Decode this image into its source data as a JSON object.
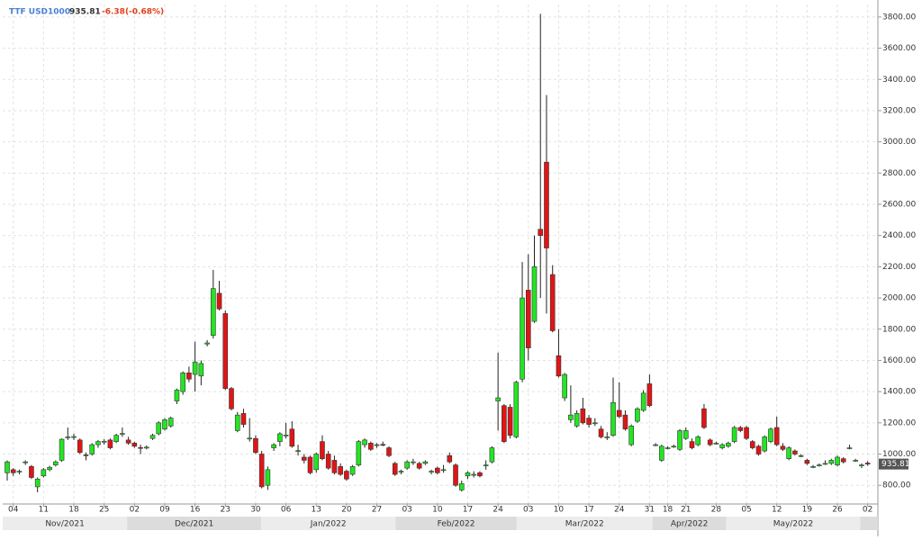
{
  "chart_data": {
    "type": "candlestick",
    "instrument": "TTF USD1000",
    "last_price": 935.81,
    "change": "-6.38(-0.68%)",
    "up_color": "#22e622",
    "down_color": "#e01515",
    "grid": true,
    "ylim": [
      680,
      3880
    ],
    "yticks": [
      {
        "value": 800,
        "label": "800.00"
      },
      {
        "value": 1000,
        "label": "1000.00"
      },
      {
        "value": 1200,
        "label": "1200.00"
      },
      {
        "value": 1400,
        "label": "1400.00"
      },
      {
        "value": 1600,
        "label": "1600.00"
      },
      {
        "value": 1800,
        "label": "1800.00"
      },
      {
        "value": 2000,
        "label": "2000.00"
      },
      {
        "value": 2200,
        "label": "2200.00"
      },
      {
        "value": 2400,
        "label": "2400.00"
      },
      {
        "value": 2600,
        "label": "2600.00"
      },
      {
        "value": 2800,
        "label": "2800.00"
      },
      {
        "value": 3000,
        "label": "3000.00"
      },
      {
        "value": 3200,
        "label": "3200.00"
      },
      {
        "value": 3400,
        "label": "3400.00"
      },
      {
        "value": 3600,
        "label": "3600.00"
      },
      {
        "value": 3800,
        "label": "3800.00"
      }
    ],
    "months": [
      "Nov/2021",
      "Dec/2021",
      "Jan/2022",
      "Feb/2022",
      "Mar/2022",
      "Apr/2022",
      "May/2022"
    ],
    "categories": [
      null,
      "04",
      null,
      null,
      null,
      null,
      "11",
      null,
      null,
      null,
      null,
      "18",
      null,
      null,
      null,
      null,
      "25",
      null,
      null,
      null,
      null,
      "02",
      null,
      null,
      null,
      null,
      "09",
      null,
      null,
      null,
      null,
      "16",
      null,
      null,
      null,
      null,
      "23",
      null,
      null,
      null,
      null,
      "30",
      null,
      null,
      null,
      null,
      "06",
      null,
      null,
      null,
      null,
      "13",
      null,
      null,
      null,
      null,
      "20",
      null,
      null,
      null,
      null,
      "27",
      null,
      null,
      null,
      null,
      "03",
      null,
      null,
      null,
      null,
      "10",
      null,
      null,
      null,
      null,
      "17",
      null,
      null,
      null,
      null,
      "24",
      null,
      null,
      null,
      null,
      "03",
      null,
      null,
      null,
      null,
      "10",
      null,
      null,
      null,
      null,
      "17",
      null,
      null,
      null,
      null,
      "24",
      null,
      null,
      null,
      null,
      "31",
      null,
      null,
      "18",
      null,
      null,
      "21",
      null,
      null,
      null,
      null,
      "28",
      null,
      null,
      null,
      null,
      "05",
      null,
      null,
      null,
      null,
      "12",
      null,
      null,
      null,
      null,
      "19",
      null,
      null,
      null,
      null,
      "26",
      null,
      null,
      null,
      null,
      "02"
    ],
    "open": [
      880,
      900,
      885,
      945,
      920,
      790,
      860,
      900,
      930,
      960,
      1105,
      1110,
      1090,
      995,
      1000,
      1060,
      1080,
      1090,
      1080,
      1130,
      1090,
      1070,
      1042,
      1040,
      1100,
      1130,
      1160,
      1180,
      1340,
      1400,
      1520,
      1510,
      1500,
      1705,
      1760,
      2030,
      1900,
      1420,
      1150,
      1260,
      1100,
      1100,
      1000,
      800,
      1040,
      1080,
      1118,
      1160,
      1020,
      980,
      980,
      900,
      1080,
      1000,
      960,
      920,
      890,
      870,
      930,
      1060,
      1070,
      1058,
      1062,
      1040,
      940,
      888,
      910,
      948,
      940,
      940,
      888,
      910,
      898,
      990,
      930,
      770,
      860,
      868,
      880,
      928,
      950,
      1340,
      1310,
      1300,
      1110,
      1480,
      2050,
      1850,
      2440,
      2870,
      2150,
      1630,
      1360,
      1220,
      1180,
      1290,
      1230,
      1198,
      1160,
      1108,
      1120,
      1280,
      1250,
      1060,
      1210,
      1280,
      1450,
      1058,
      960,
      1038,
      1048,
      1030,
      1100,
      1080,
      1060,
      1290,
      1090,
      1068,
      1040,
      1050,
      1080,
      1170,
      1170,
      1080,
      1050,
      1020,
      1080,
      1170,
      1050,
      970,
      1020,
      988,
      960,
      918,
      928,
      938,
      940,
      930,
      970,
      1038,
      958,
      928,
      942.19
    ],
    "high": [
      960,
      910,
      900,
      960,
      930,
      850,
      910,
      925,
      960,
      1100,
      1170,
      1130,
      1100,
      1010,
      1070,
      1090,
      1095,
      1100,
      1130,
      1170,
      1110,
      1080,
      1060,
      1055,
      1130,
      1210,
      1230,
      1240,
      1420,
      1530,
      1560,
      1720,
      1600,
      1730,
      2180,
      2110,
      1920,
      1430,
      1270,
      1290,
      1230,
      1120,
      1020,
      920,
      1070,
      1140,
      1200,
      1210,
      1060,
      1000,
      990,
      1010,
      1120,
      1020,
      990,
      940,
      900,
      930,
      1090,
      1100,
      1080,
      1070,
      1080,
      1050,
      950,
      900,
      960,
      970,
      950,
      960,
      900,
      920,
      930,
      1010,
      940,
      830,
      890,
      890,
      890,
      960,
      1050,
      1650,
      1320,
      1320,
      1470,
      2230,
      2280,
      2400,
      3820,
      3300,
      2210,
      1800,
      1520,
      1440,
      1280,
      1360,
      1250,
      1230,
      1180,
      1140,
      1490,
      1460,
      1280,
      1190,
      1300,
      1410,
      1510,
      1070,
      1060,
      1050,
      1060,
      1160,
      1170,
      1100,
      1120,
      1320,
      1100,
      1080,
      1070,
      1080,
      1180,
      1180,
      1180,
      1090,
      1060,
      1120,
      1170,
      1240,
      1070,
      1050,
      1030,
      1000,
      970,
      930,
      940,
      960,
      970,
      990,
      980,
      1060,
      970,
      940,
      955
    ],
    "low": [
      830,
      860,
      870,
      930,
      840,
      755,
      850,
      890,
      920,
      950,
      1090,
      1090,
      1000,
      960,
      990,
      1040,
      1060,
      1030,
      1070,
      1110,
      1060,
      1040,
      1000,
      1030,
      1090,
      1120,
      1150,
      1170,
      1320,
      1380,
      1460,
      1400,
      1440,
      1690,
      1740,
      1920,
      1410,
      1280,
      1140,
      1170,
      1080,
      1000,
      780,
      770,
      1020,
      1050,
      1100,
      1040,
      990,
      940,
      870,
      880,
      960,
      900,
      870,
      860,
      830,
      860,
      920,
      1040,
      1020,
      1040,
      1050,
      980,
      860,
      870,
      900,
      930,
      900,
      930,
      870,
      870,
      880,
      940,
      790,
      760,
      840,
      850,
      850,
      900,
      940,
      1150,
      1070,
      1100,
      1100,
      1460,
      1600,
      1840,
      2000,
      1900,
      1780,
      1490,
      1340,
      1200,
      1170,
      1190,
      1170,
      1180,
      1100,
      1090,
      1110,
      1230,
      1150,
      1050,
      1200,
      1270,
      1300,
      1050,
      950,
      1030,
      1040,
      1020,
      1090,
      1030,
      1050,
      1160,
      1050,
      1060,
      1030,
      1040,
      1070,
      1140,
      1090,
      1030,
      990,
      1010,
      1070,
      1050,
      1020,
      960,
      990,
      980,
      930,
      910,
      920,
      930,
      930,
      920,
      940,
      1030,
      950,
      910,
      925
    ],
    "close": [
      950,
      880,
      890,
      950,
      850,
      840,
      900,
      915,
      950,
      1095,
      1110,
      1112,
      1010,
      990,
      1060,
      1080,
      1082,
      1040,
      1120,
      1132,
      1070,
      1050,
      1040,
      1044,
      1120,
      1200,
      1220,
      1230,
      1410,
      1520,
      1480,
      1590,
      1580,
      1712,
      2060,
      1930,
      1420,
      1290,
      1250,
      1190,
      1102,
      1010,
      790,
      900,
      1060,
      1130,
      1122,
      1050,
      1022,
      960,
      880,
      1000,
      970,
      910,
      880,
      870,
      840,
      920,
      1080,
      1090,
      1030,
      1060,
      1060,
      990,
      870,
      890,
      950,
      950,
      910,
      950,
      890,
      880,
      900,
      950,
      800,
      810,
      880,
      870,
      860,
      930,
      1040,
      1360,
      1080,
      1120,
      1460,
      2000,
      1680,
      2200,
      2400,
      2320,
      1790,
      1500,
      1510,
      1250,
      1260,
      1200,
      1190,
      1200,
      1110,
      1110,
      1330,
      1240,
      1160,
      1180,
      1290,
      1390,
      1310,
      1060,
      1050,
      1040,
      1050,
      1150,
      1150,
      1040,
      1110,
      1170,
      1060,
      1070,
      1060,
      1070,
      1170,
      1150,
      1100,
      1040,
      1000,
      1110,
      1160,
      1060,
      1030,
      1040,
      1000,
      990,
      940,
      920,
      930,
      940,
      960,
      980,
      950,
      1040,
      960,
      930,
      935.81
    ]
  }
}
